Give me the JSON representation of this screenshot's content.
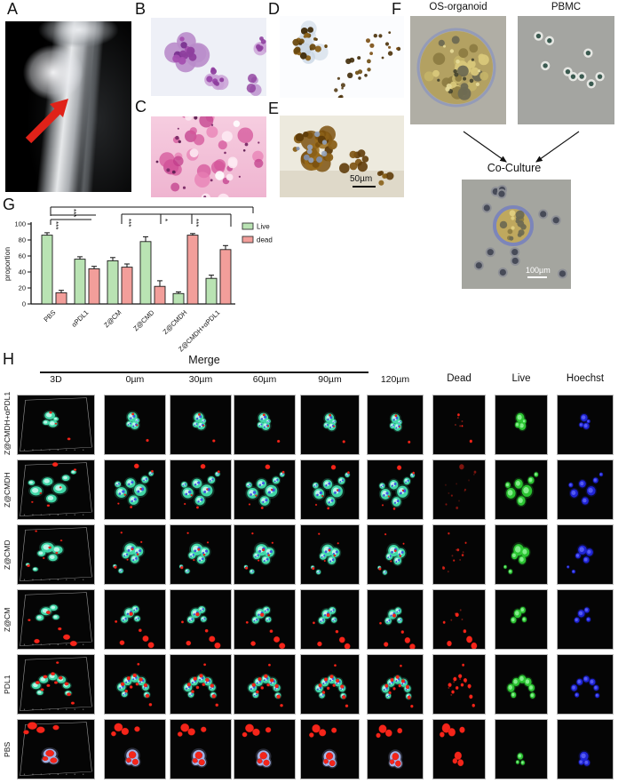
{
  "figure_title": "Osteosarcoma organoid co-culture figure",
  "panels": {
    "A": {
      "label": "A"
    },
    "B": {
      "label": "B"
    },
    "C": {
      "label": "C"
    },
    "D": {
      "label": "D"
    },
    "E": {
      "label": "E",
      "scale_bar": "50µm"
    },
    "F": {
      "label": "F",
      "left_title": "OS-organoid",
      "right_title": "PBMC",
      "co_culture_title": "Co-Culture",
      "co_culture_scale_bar": "100µm"
    },
    "G": {
      "label": "G"
    },
    "H": {
      "label": "H"
    }
  },
  "chart_data": {
    "type": "bar",
    "title": "",
    "xlabel": "",
    "ylabel": "proportion",
    "ylim": [
      0,
      100
    ],
    "yticks": [
      0,
      20,
      40,
      60,
      80,
      100
    ],
    "grid": false,
    "legend_position": "right",
    "categories": [
      "PBS",
      "αPDL1",
      "Z@CM",
      "Z@CMD",
      "Z@CMDH",
      "Z@CMDH+αPDL1"
    ],
    "series": [
      {
        "name": "Live",
        "color": "#b9e3b3",
        "border": "#1a1a1a",
        "values": [
          86,
          56,
          54,
          78,
          13,
          32
        ],
        "errors": [
          3,
          3,
          4,
          6,
          2,
          4
        ]
      },
      {
        "name": "dead",
        "color": "#f29e9a",
        "border": "#1a1a1a",
        "values": [
          14,
          44,
          46,
          22,
          86,
          68
        ],
        "errors": [
          3,
          3,
          4,
          7,
          2,
          5
        ]
      }
    ],
    "significance": [
      {
        "from": "PBS",
        "to": "Z@CMDH+αPDL1",
        "label": "***"
      },
      {
        "from": "PBS",
        "to": "αPDL1",
        "label": "***"
      },
      {
        "from": "PBS",
        "to": "αPDL1",
        "label": "***"
      },
      {
        "from": "Z@CM",
        "to": "Z@CMDH",
        "label": "***",
        "mid": [
          {
            "at": "Z@CMD",
            "label": "*"
          },
          {
            "at": "Z@CMDH",
            "label": "***"
          }
        ]
      }
    ]
  },
  "panel_h": {
    "merge_label": "Merge",
    "columns": [
      "3D",
      "0µm",
      "30µm",
      "60µm",
      "90µm",
      "120µm",
      "Dead",
      "Live",
      "Hoechst"
    ],
    "merge_columns": [
      "3D",
      "0µm",
      "30µm",
      "60µm",
      "90µm"
    ],
    "channel_colors": {
      "merge_cluster": "#45e0ae",
      "live": "#2ecc35",
      "dead": "#f5251a",
      "hoechst": "#2126dd"
    },
    "rows": [
      {
        "label": "Z@CMDH+αPDL1",
        "cluster": [
          [
            48,
            38,
            8
          ],
          [
            52,
            52,
            7
          ],
          [
            43,
            50,
            5
          ],
          [
            56,
            44,
            4
          ]
        ],
        "red": [
          [
            49,
            33,
            2
          ],
          [
            73,
            78,
            2.3
          ],
          [
            56,
            52,
            1.4
          ]
        ],
        "deadAlpha": 1,
        "liveScale": 1,
        "tint": "cyan"
      },
      {
        "label": "Z@CMDH",
        "cluster": [
          [
            30,
            56,
            9
          ],
          [
            45,
            40,
            8
          ],
          [
            61,
            52,
            10
          ],
          [
            50,
            69,
            8
          ],
          [
            69,
            34,
            6
          ],
          [
            24,
            42,
            5
          ],
          [
            79,
            24,
            4
          ]
        ],
        "red": [
          [
            55,
            11,
            4
          ],
          [
            81,
            20,
            2
          ],
          [
            36,
            60,
            1.5
          ],
          [
            62,
            50,
            1.5
          ],
          [
            46,
            81,
            2
          ],
          [
            25,
            75,
            1.5
          ]
        ],
        "deadAlpha": 0.5,
        "liveScale": 1,
        "tint": "cyan"
      },
      {
        "label": "Z@CMD",
        "cluster": [
          [
            45,
            42,
            10
          ],
          [
            58,
            46,
            8
          ],
          [
            37,
            52,
            6
          ],
          [
            52,
            59,
            7
          ],
          [
            29,
            79,
            4
          ],
          [
            19,
            71,
            3
          ]
        ],
        "red": [
          [
            48,
            42,
            2
          ],
          [
            57,
            51,
            1.8
          ],
          [
            20,
            73,
            2.2
          ],
          [
            30,
            14,
            1.6
          ],
          [
            63,
            30,
            1.5
          ],
          [
            40,
            60,
            1.5
          ]
        ],
        "deadAlpha": 0.85,
        "liveScale": 1,
        "tint": "cyan"
      },
      {
        "label": "Z@CM",
        "cluster": [
          [
            43,
            40,
            8
          ],
          [
            53,
            34,
            6
          ],
          [
            35,
            51,
            6
          ],
          [
            56,
            50,
            5
          ]
        ],
        "red": [
          [
            46,
            42,
            3
          ],
          [
            70,
            84,
            5
          ],
          [
            79,
            95,
            5
          ],
          [
            31,
            91,
            4
          ],
          [
            61,
            70,
            2.6
          ],
          [
            21,
            55,
            2
          ]
        ],
        "deadAlpha": 1,
        "liveScale": 0.9,
        "tint": "cyan"
      },
      {
        "label": "PDL1",
        "cluster": [
          [
            30,
            56,
            7
          ],
          [
            40,
            46,
            7
          ],
          [
            52,
            41,
            7
          ],
          [
            63,
            46,
            7
          ],
          [
            70,
            56,
            6
          ],
          [
            72,
            69,
            5
          ],
          [
            35,
            68,
            5
          ]
        ],
        "red": [
          [
            32,
            51,
            3
          ],
          [
            42,
            41,
            3
          ],
          [
            52,
            36,
            3
          ],
          [
            62,
            43,
            3
          ],
          [
            70,
            53,
            3
          ],
          [
            73,
            71,
            3
          ],
          [
            46,
            56,
            2.5
          ],
          [
            56,
            51,
            2.5
          ],
          [
            38,
            63,
            2.5
          ],
          [
            78,
            86,
            2.5
          ],
          [
            58,
            17,
            2
          ]
        ],
        "deadAlpha": 1,
        "liveScale": 1,
        "tint": "cyan"
      },
      {
        "label": "PBS",
        "cluster": [
          [
            48,
            62,
            10
          ],
          [
            53,
            73,
            7
          ],
          [
            43,
            72,
            6
          ]
        ],
        "red": [
          [
            25,
            14,
            7
          ],
          [
            36,
            21,
            6
          ],
          [
            17,
            25,
            4
          ],
          [
            56,
            17,
            4.5
          ],
          [
            48,
            61,
            6
          ],
          [
            53,
            73,
            5
          ],
          [
            42,
            70,
            4
          ]
        ],
        "deadAlpha": 1,
        "liveScale": 0.55,
        "tint": "blue"
      }
    ]
  }
}
